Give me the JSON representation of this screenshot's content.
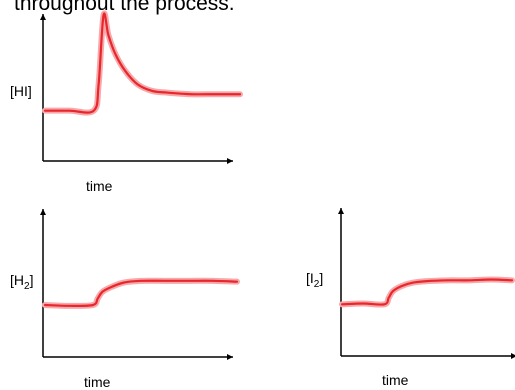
{
  "heading_fragment": "throughout the process.",
  "chart_data": [
    {
      "type": "line",
      "ylabel": "[HI]",
      "xlabel": "time",
      "series": [
        {
          "color": "#e8262b",
          "x": [
            0,
            1,
            2,
            2.2,
            2.4,
            2.6,
            2.9,
            3.3,
            3.8,
            4.4,
            5,
            6,
            7,
            8
          ],
          "y": [
            3,
            3,
            3,
            4.6,
            8.8,
            7.6,
            6.4,
            5.4,
            4.6,
            4.2,
            4.1,
            4.0,
            4.0,
            4.0
          ]
        }
      ]
    },
    {
      "type": "line",
      "ylabel": "[H2]",
      "xlabel": "time",
      "series": [
        {
          "color": "#e8262b",
          "x": [
            0,
            1,
            2,
            2.2,
            2.4,
            2.8,
            3.3,
            4,
            5,
            6,
            7,
            8
          ],
          "y": [
            3,
            2.95,
            3,
            3.4,
            3.8,
            4.1,
            4.35,
            4.45,
            4.45,
            4.45,
            4.45,
            4.4
          ]
        }
      ]
    },
    {
      "type": "line",
      "ylabel": "[I2]",
      "xlabel": "time",
      "series": [
        {
          "color": "#e8262b",
          "x": [
            0,
            1,
            2,
            2.2,
            2.4,
            2.8,
            3.3,
            4,
            5,
            6,
            7,
            8
          ],
          "y": [
            3,
            3.05,
            3,
            3.4,
            3.8,
            4.1,
            4.3,
            4.4,
            4.45,
            4.45,
            4.5,
            4.45
          ]
        }
      ]
    }
  ]
}
